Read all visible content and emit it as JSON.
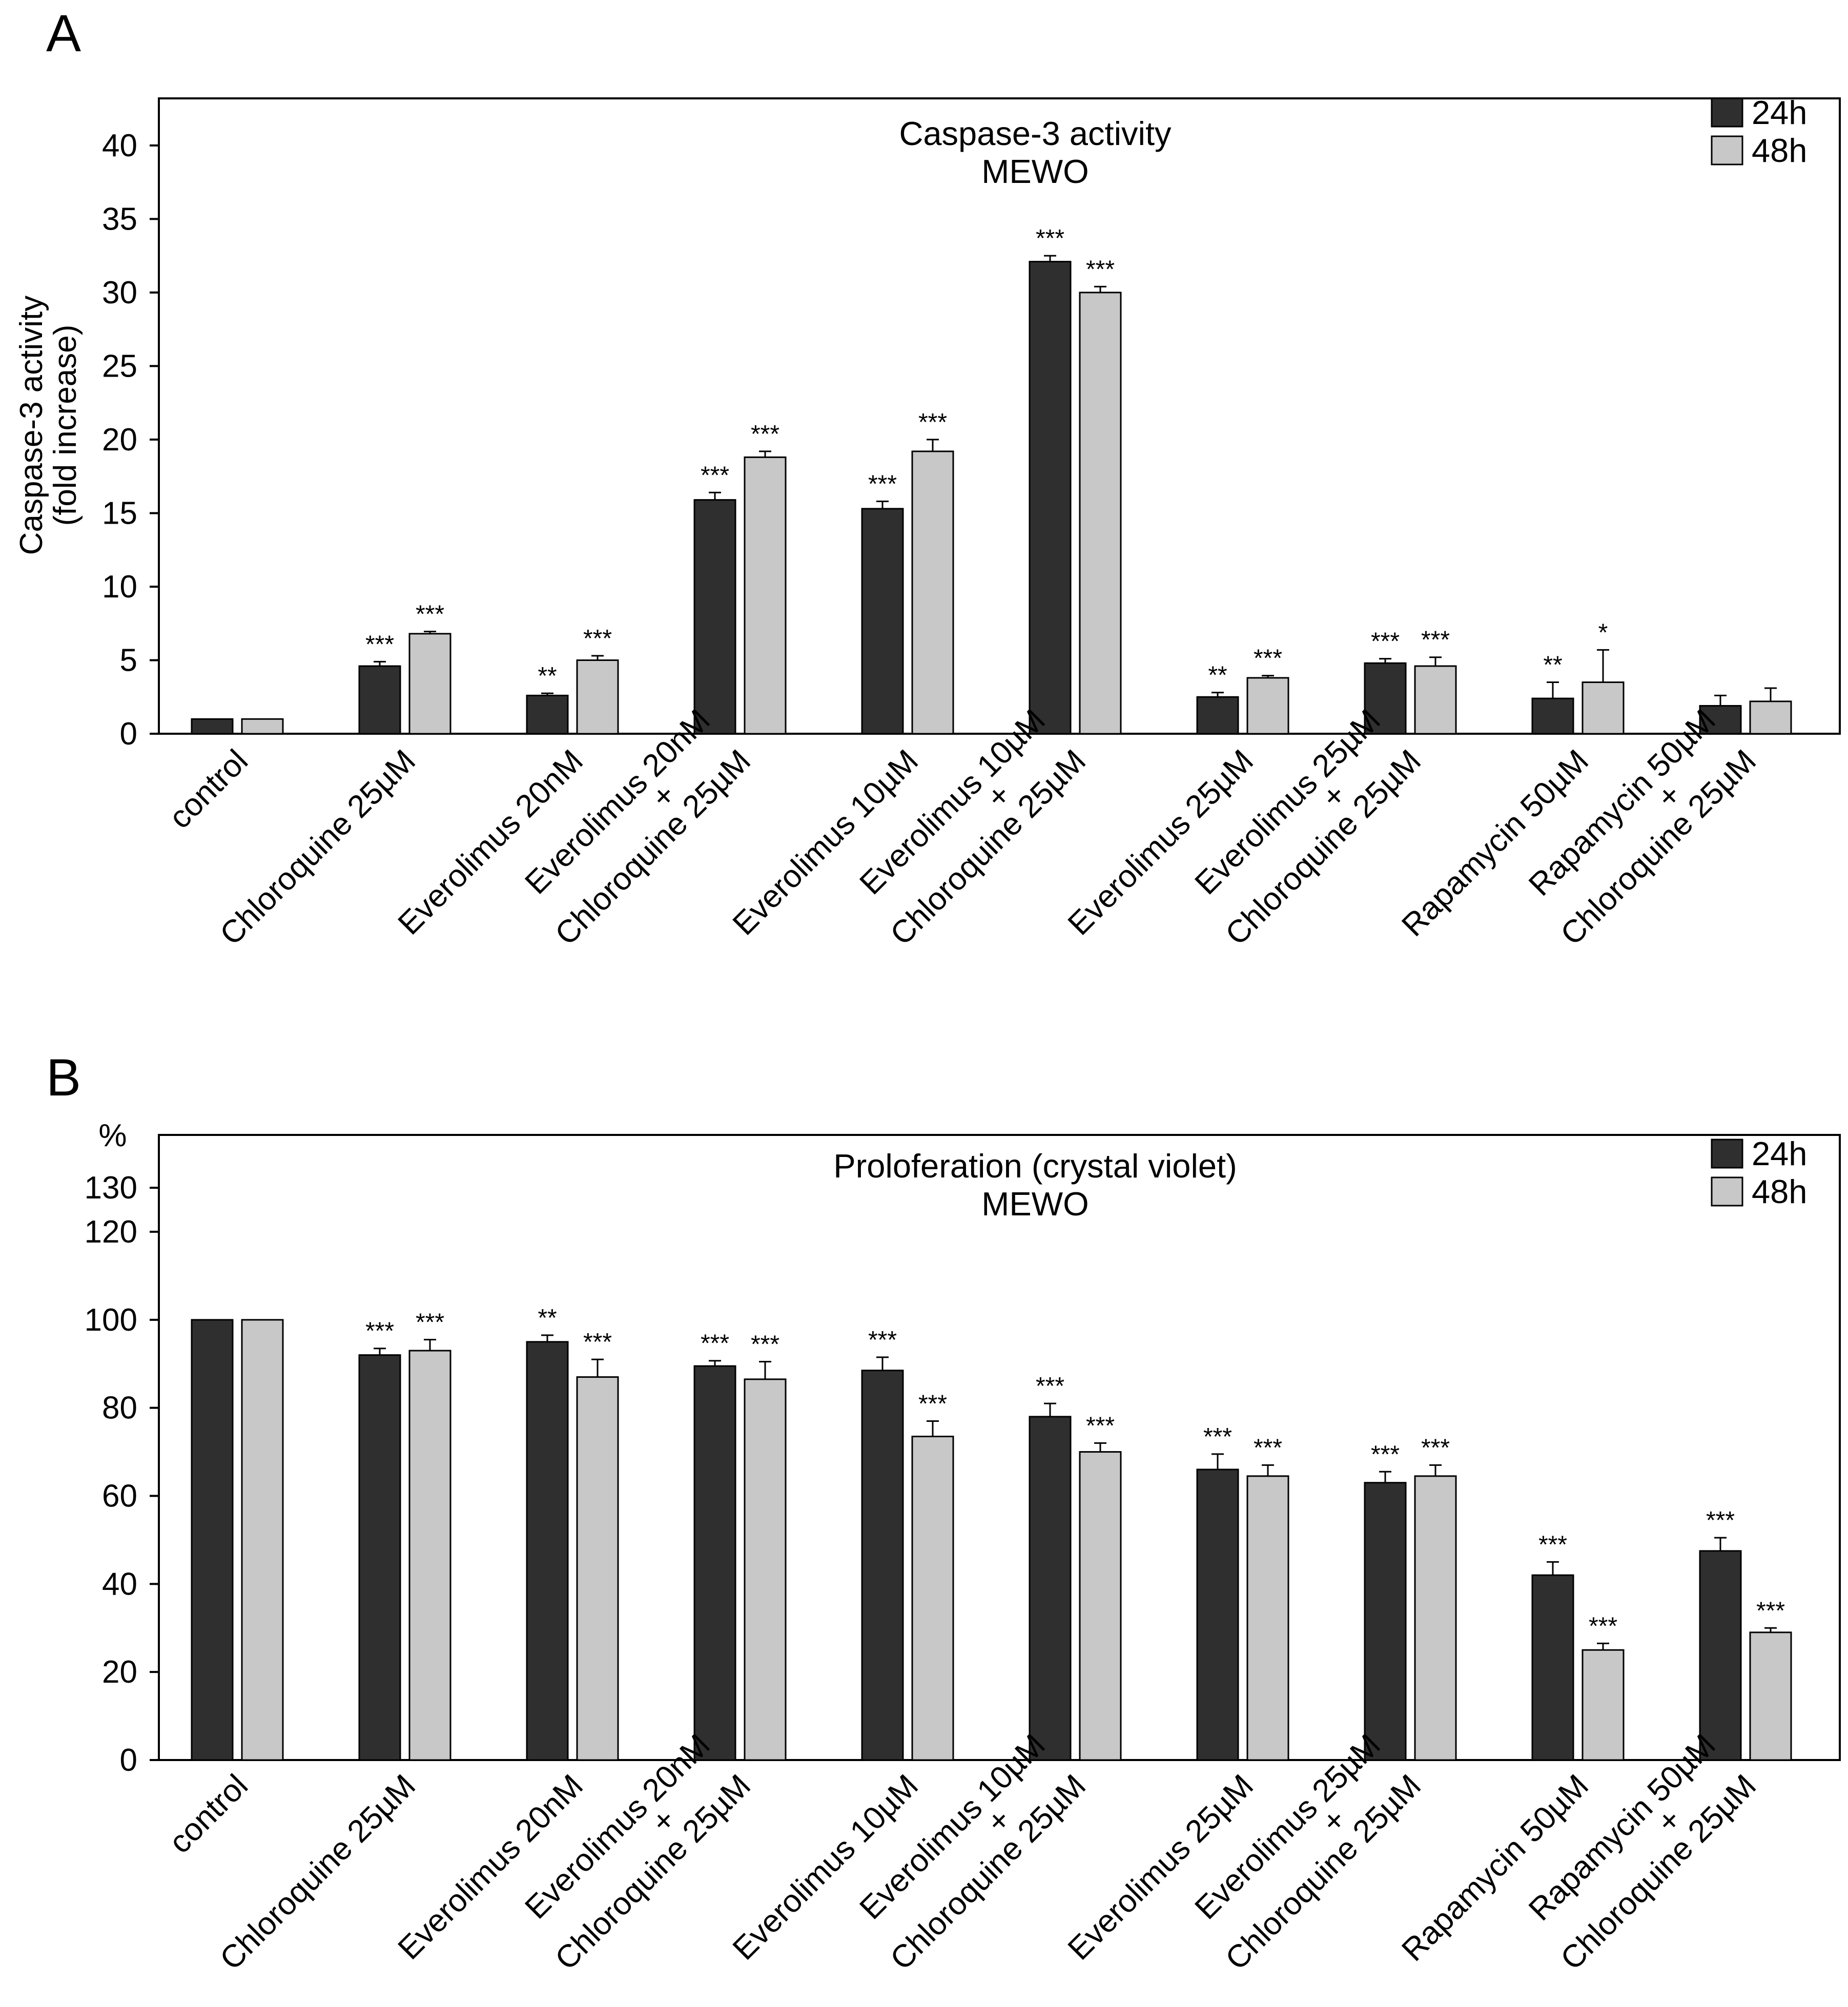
{
  "figure": {
    "panels": [
      "A",
      "B"
    ]
  },
  "chart_data": [
    {
      "panel_label": "A",
      "type": "bar",
      "title": "Caspase-3 activity",
      "subtitle": "MEWO",
      "xlabel": "",
      "ylabel": [
        "Caspase-3 activity",
        "(fold increase)"
      ],
      "ylabel_top": "",
      "ylim": [
        0,
        43.2
      ],
      "yticks": [
        0,
        5,
        10,
        15,
        20,
        25,
        30,
        35,
        40
      ],
      "grid": false,
      "legend_position": "top-right",
      "categories": [
        [
          "control"
        ],
        [
          "Chloroquine 25µM"
        ],
        [
          "Everolimus 20nM"
        ],
        [
          "Everolimus 20nM",
          "+",
          "Chloroquine 25µM"
        ],
        [
          "Everolimus 10µM"
        ],
        [
          "Everolimus 10µM",
          "+",
          "Chloroquine 25µM"
        ],
        [
          "Everolimus 25µM"
        ],
        [
          "Everolimus 25µM",
          "+",
          "Chloroquine 25µM"
        ],
        [
          "Rapamycin 50µM"
        ],
        [
          "Rapamycin 50µM",
          "+",
          "Chloroquine 25µM"
        ]
      ],
      "series": [
        {
          "name": "24h",
          "color": "#2f2f2f",
          "values": [
            1.0,
            4.6,
            2.6,
            15.9,
            15.3,
            32.1,
            2.5,
            4.8,
            2.4,
            1.9
          ],
          "errors": [
            0,
            0.3,
            0.15,
            0.5,
            0.5,
            0.4,
            0.3,
            0.3,
            1.1,
            0.7
          ],
          "significance": [
            "",
            "***",
            "**",
            "***",
            "***",
            "***",
            "**",
            "***",
            "**",
            ""
          ]
        },
        {
          "name": "48h",
          "color": "#c8c8c8",
          "values": [
            1.0,
            6.8,
            5.0,
            18.8,
            19.2,
            30.0,
            3.8,
            4.6,
            3.5,
            2.2
          ],
          "errors": [
            0,
            0.15,
            0.3,
            0.4,
            0.8,
            0.4,
            0.15,
            0.6,
            2.2,
            0.9
          ],
          "significance": [
            "",
            "***",
            "***",
            "***",
            "***",
            "***",
            "***",
            "***",
            "*",
            ""
          ]
        }
      ]
    },
    {
      "panel_label": "B",
      "type": "bar",
      "title": "Proloferation (crystal violet)",
      "subtitle": "MEWO",
      "xlabel": "",
      "ylabel": [],
      "ylabel_top": "%",
      "ylim": [
        0,
        142
      ],
      "yticks": [
        0,
        20,
        40,
        60,
        80,
        100,
        120,
        130
      ],
      "grid": false,
      "legend_position": "top-right",
      "categories": [
        [
          "control"
        ],
        [
          "Chloroquine 25µM"
        ],
        [
          "Everolimus 20nM"
        ],
        [
          "Everolimus 20nM",
          "+",
          "Chloroquine 25µM"
        ],
        [
          "Everolimus 10µM"
        ],
        [
          "Everolimus 10µM",
          "+",
          "Chloroquine 25µM"
        ],
        [
          "Everolimus 25µM"
        ],
        [
          "Everolimus 25µM",
          "+",
          "Chloroquine 25µM"
        ],
        [
          "Rapamycin 50µM"
        ],
        [
          "Rapamycin 50µM",
          "+",
          "Chloroquine 25µM"
        ]
      ],
      "series": [
        {
          "name": "24h",
          "color": "#2f2f2f",
          "values": [
            100,
            92,
            95,
            89.5,
            88.5,
            78,
            66,
            63,
            42,
            47.5
          ],
          "errors": [
            0,
            1.5,
            1.5,
            1.2,
            3.0,
            3.0,
            3.5,
            2.5,
            3.0,
            3.0
          ],
          "significance": [
            "",
            "***",
            "**",
            "***",
            "***",
            "***",
            "***",
            "***",
            "***",
            "***"
          ]
        },
        {
          "name": "48h",
          "color": "#c8c8c8",
          "values": [
            100,
            93,
            87,
            86.5,
            73.5,
            70,
            64.5,
            64.5,
            25,
            29
          ],
          "errors": [
            0,
            2.5,
            4.0,
            4.0,
            3.5,
            2.0,
            2.5,
            2.5,
            1.5,
            1.0
          ],
          "significance": [
            "",
            "***",
            "***",
            "***",
            "***",
            "***",
            "***",
            "***",
            "***",
            "***"
          ]
        }
      ]
    }
  ]
}
